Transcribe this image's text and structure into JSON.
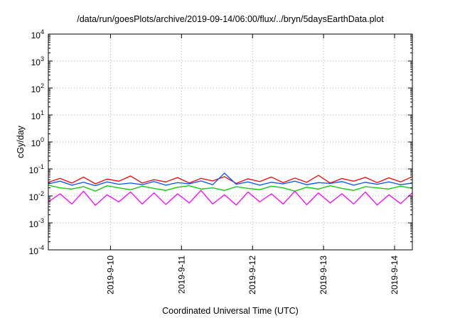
{
  "chart_data": {
    "type": "line",
    "title": "/data/run/goesPlots/archive/2019-09-14/06:00/flux/../bryn/5daysEarthData.plot",
    "xlabel": "Coordinated Universal Time (UTC)",
    "ylabel": "cGy/day",
    "yscale": "log",
    "ylim": [
      0.0001,
      10000
    ],
    "xlim": [
      "2019-09-09T03:00",
      "2019-09-14T06:00"
    ],
    "yticks": [
      {
        "value": 10000,
        "base": "10",
        "exp": "4"
      },
      {
        "value": 1000,
        "base": "10",
        "exp": "3"
      },
      {
        "value": 100,
        "base": "10",
        "exp": "2"
      },
      {
        "value": 10,
        "base": "10",
        "exp": "1"
      },
      {
        "value": 1,
        "base": "10",
        "exp": "0"
      },
      {
        "value": 0.1,
        "base": "10",
        "exp": "-1"
      },
      {
        "value": 0.01,
        "base": "10",
        "exp": "-2"
      },
      {
        "value": 0.001,
        "base": "10",
        "exp": "-3"
      },
      {
        "value": 0.0001,
        "base": "10",
        "exp": "-4"
      }
    ],
    "xticks": [
      {
        "value": "2019-09-10T00:00",
        "label": "2019-9-10"
      },
      {
        "value": "2019-09-11T00:00",
        "label": "2019-9-11"
      },
      {
        "value": "2019-09-12T00:00",
        "label": "2019-9-12"
      },
      {
        "value": "2019-09-13T00:00",
        "label": "2019-9-13"
      },
      {
        "value": "2019-09-14T00:00",
        "label": "2019-9-14"
      }
    ],
    "grid": true,
    "series": [
      {
        "color": "#ff0000",
        "values": [
          0.032,
          0.045,
          0.03,
          0.05,
          0.028,
          0.042,
          0.035,
          0.055,
          0.03,
          0.04,
          0.033,
          0.048,
          0.03,
          0.045,
          0.036,
          0.052,
          0.029,
          0.043,
          0.034,
          0.05,
          0.031,
          0.046,
          0.032,
          0.058,
          0.03,
          0.044,
          0.035,
          0.049,
          0.031,
          0.047,
          0.033,
          0.052
        ]
      },
      {
        "color": "#00cc00",
        "values": [
          0.025,
          0.02,
          0.018,
          0.022,
          0.015,
          0.024,
          0.02,
          0.017,
          0.023,
          0.019,
          0.016,
          0.021,
          0.024,
          0.018,
          0.02,
          0.016,
          0.022,
          0.019,
          0.017,
          0.023,
          0.02,
          0.015,
          0.021,
          0.018,
          0.024,
          0.019,
          0.016,
          0.022,
          0.02,
          0.018,
          0.023,
          0.019
        ]
      },
      {
        "color": "#0055ff",
        "values": [
          0.028,
          0.035,
          0.025,
          0.032,
          0.024,
          0.033,
          0.027,
          0.03,
          0.026,
          0.034,
          0.025,
          0.031,
          0.028,
          0.036,
          0.026,
          0.07,
          0.027,
          0.033,
          0.025,
          0.032,
          0.028,
          0.035,
          0.026,
          0.031,
          0.029,
          0.034,
          0.025,
          0.032,
          0.027,
          0.033,
          0.026,
          0.03
        ]
      },
      {
        "color": "#ff00ff",
        "values": [
          0.006,
          0.012,
          0.005,
          0.015,
          0.0045,
          0.011,
          0.006,
          0.014,
          0.005,
          0.013,
          0.0048,
          0.012,
          0.0055,
          0.016,
          0.005,
          0.011,
          0.0046,
          0.014,
          0.006,
          0.012,
          0.005,
          0.015,
          0.0047,
          0.013,
          0.0055,
          0.012,
          0.005,
          0.014,
          0.0046,
          0.011,
          0.0052,
          0.013
        ]
      }
    ]
  }
}
